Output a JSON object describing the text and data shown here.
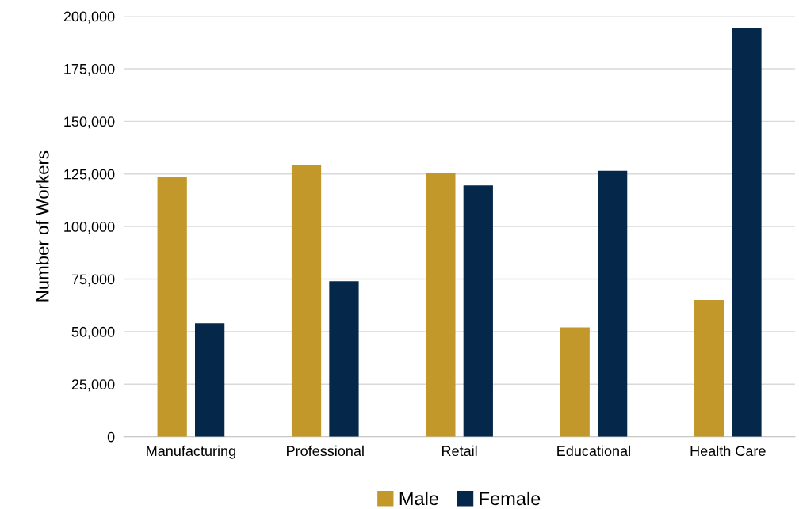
{
  "chart_data": {
    "type": "bar",
    "ylabel": "Number of Workers",
    "categories": [
      "Manufacturing",
      "Professional",
      "Retail",
      "Educational",
      "Health Care"
    ],
    "series": [
      {
        "name": "Male",
        "color": "#c3982a",
        "values": [
          123500,
          129000,
          125500,
          52000,
          65000
        ]
      },
      {
        "name": "Female",
        "color": "#05284a",
        "values": [
          54000,
          74000,
          119500,
          126500,
          194500
        ]
      }
    ],
    "ylim": [
      0,
      200000
    ],
    "yticks": [
      {
        "value": 0,
        "label": "0"
      },
      {
        "value": 25000,
        "label": "25,000"
      },
      {
        "value": 50000,
        "label": "50,000"
      },
      {
        "value": 75000,
        "label": "75,000"
      },
      {
        "value": 100000,
        "label": "100,000"
      },
      {
        "value": 125000,
        "label": "125,000"
      },
      {
        "value": 150000,
        "label": "150,000"
      },
      {
        "value": 175000,
        "label": "175,000"
      },
      {
        "value": 200000,
        "label": "200,000"
      }
    ],
    "grid": "y",
    "legend": "bottom"
  }
}
